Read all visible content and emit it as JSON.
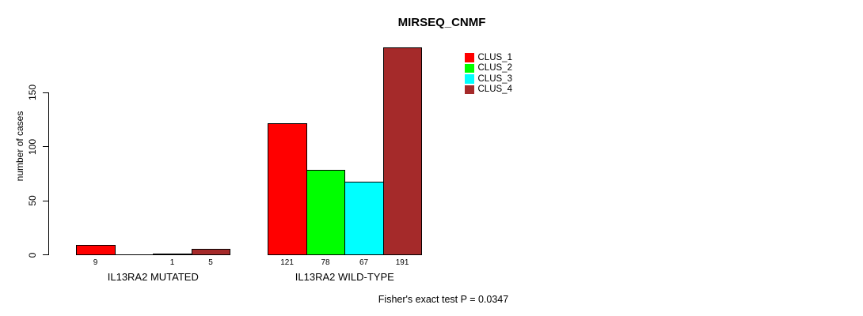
{
  "chart_data": {
    "type": "bar",
    "title": "MIRSEQ_CNMF",
    "ylabel": "number of cases",
    "yticks": [
      0,
      50,
      100,
      150
    ],
    "ylim": [
      0,
      200
    ],
    "grid": false,
    "legend_position": "top-right",
    "categories": [
      "IL13RA2 MUTATED",
      "IL13RA2 WILD-TYPE"
    ],
    "series": [
      {
        "name": "CLUS_1",
        "color": "#FF0000",
        "values": [
          9,
          121
        ]
      },
      {
        "name": "CLUS_2",
        "color": "#00FF00",
        "values": [
          0,
          78
        ]
      },
      {
        "name": "CLUS_3",
        "color": "#00FFFF",
        "values": [
          1,
          67
        ]
      },
      {
        "name": "CLUS_4",
        "color": "#A52A2A",
        "values": [
          5,
          191
        ]
      }
    ],
    "bar_value_labels": [
      [
        "9",
        "",
        "1",
        "5"
      ],
      [
        "121",
        "78",
        "67",
        "191"
      ]
    ],
    "annotation": "Fisher's exact test P = 0.0347"
  }
}
